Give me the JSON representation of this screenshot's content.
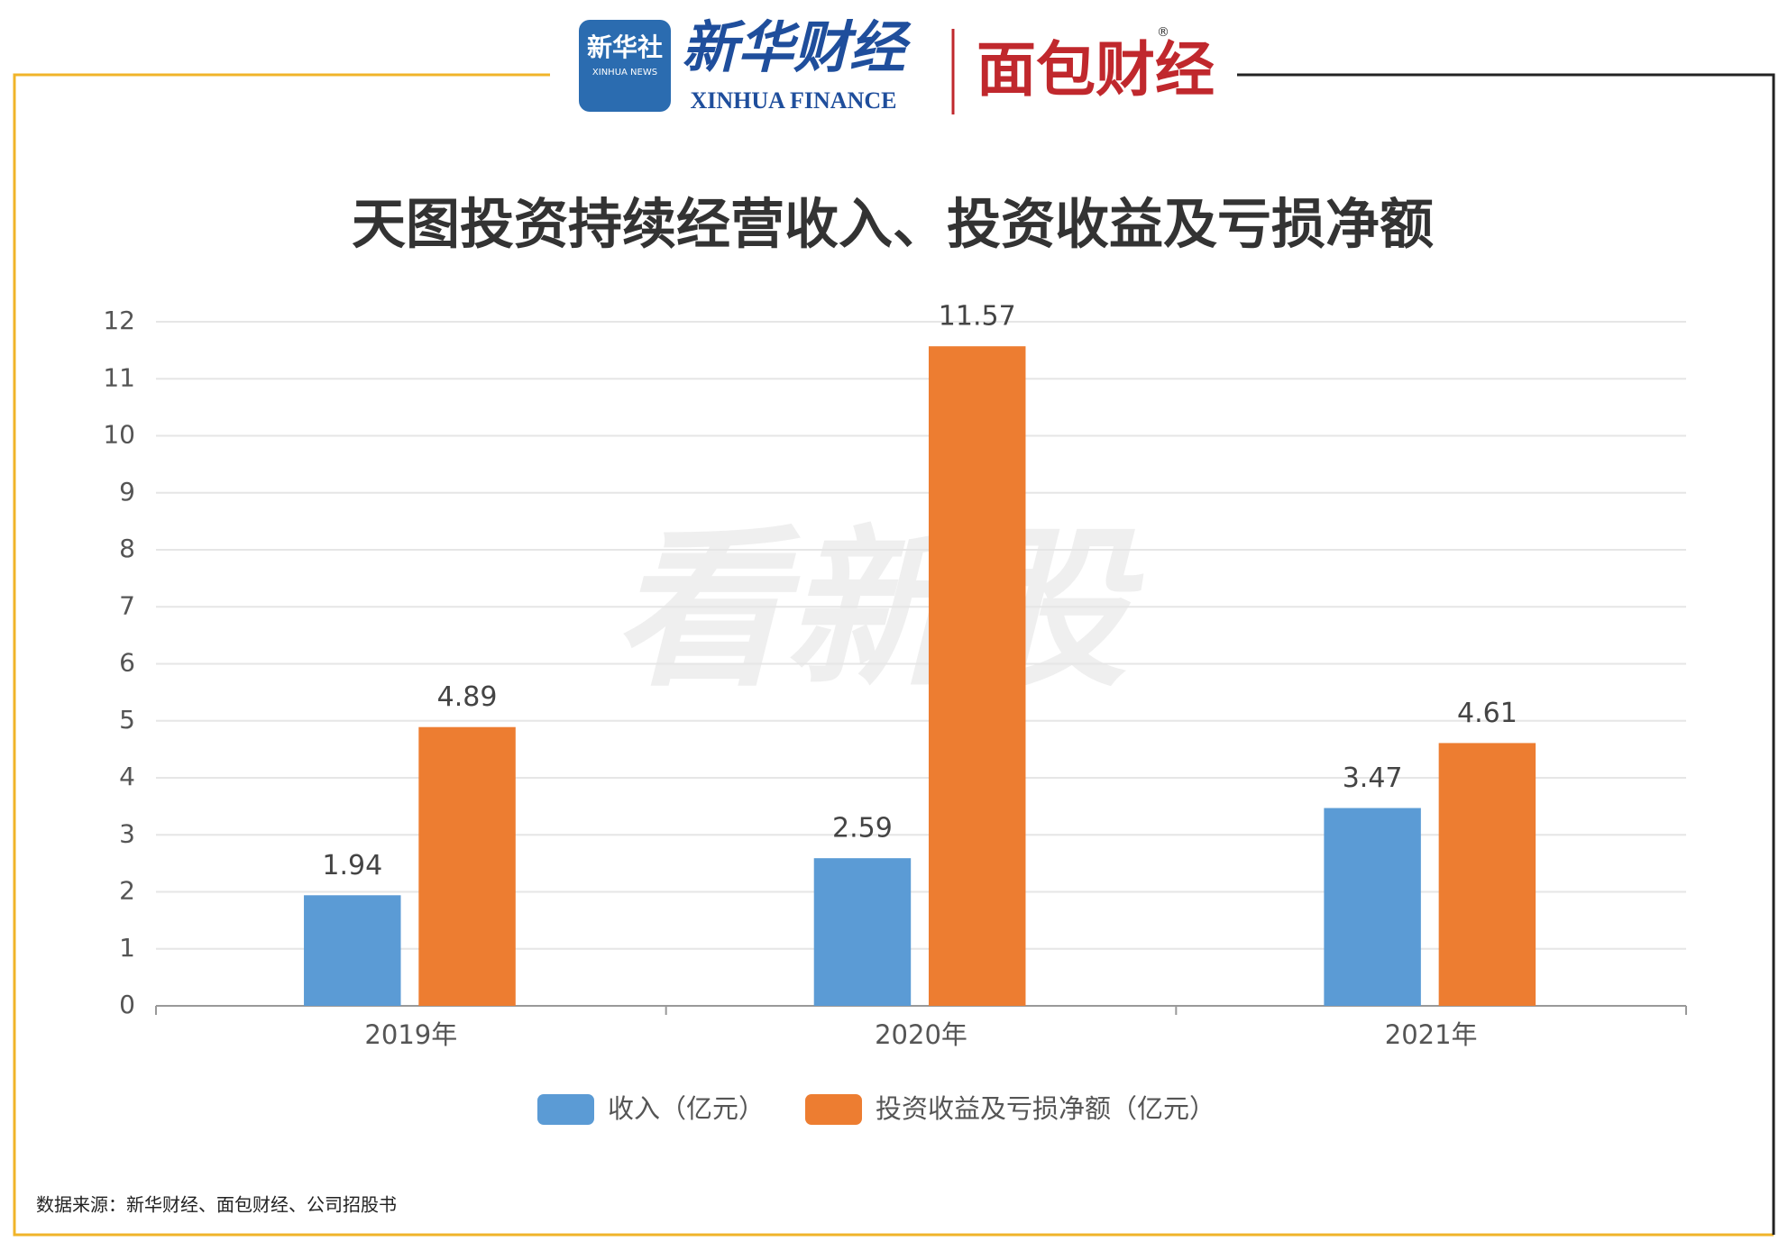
{
  "header": {
    "logo1": "新华社",
    "logo1_sub": "XINHUA NEWS",
    "logo2": "新华财经",
    "logo2_sub": "XINHUA FINANCE",
    "logo3": "面包财经",
    "registered": "®"
  },
  "watermark": "看新股",
  "source": "数据来源：新华财经、面包财经、公司招股书",
  "chart_data": {
    "type": "bar",
    "title": "天图投资持续经营收入、投资收益及亏损净额",
    "categories": [
      "2019年",
      "2020年",
      "2021年"
    ],
    "series": [
      {
        "name": "收入（亿元）",
        "color": "#5b9bd5",
        "values": [
          1.94,
          2.59,
          3.47
        ]
      },
      {
        "name": "投资收益及亏损净额（亿元）",
        "color": "#ed7d31",
        "values": [
          4.89,
          11.57,
          4.61
        ]
      }
    ],
    "ylim": [
      0,
      12
    ],
    "yticks": [
      0,
      1,
      2,
      3,
      4,
      5,
      6,
      7,
      8,
      9,
      10,
      11,
      12
    ],
    "grid": true,
    "legend": "bottom"
  }
}
